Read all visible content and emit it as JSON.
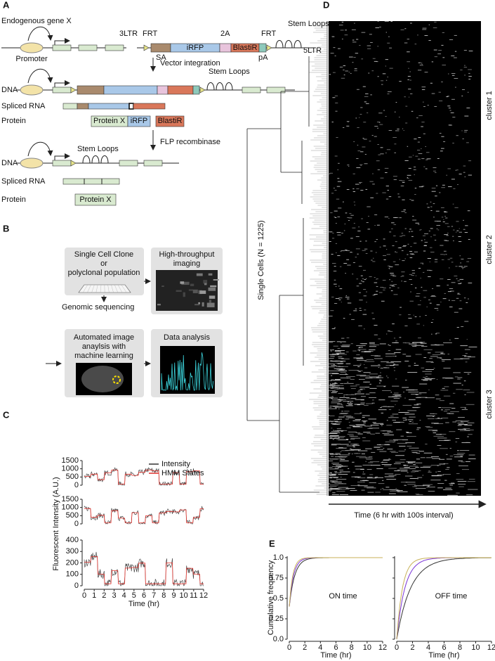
{
  "panel_a": {
    "label": "A",
    "gene": "Endogenous gene X",
    "promoter": "Promoter",
    "ltr3": "3LTR",
    "frt1": "FRT",
    "sa": "SA",
    "irfp": "iRFP",
    "a2": "2A",
    "blastir": "BlastiR",
    "frt2": "FRT",
    "pa": "pA",
    "stem_loops_1": "Stem Loops",
    "ltr5": "5LTR",
    "vector_integration": "Vector integration",
    "dna_1": "DNA",
    "stem_loops_2": "Stem Loops",
    "spliced_rna_1": "Spliced RNA",
    "protein_1": "Protein",
    "protein_x_1": "Protein X",
    "irfp_2": "iRFP",
    "blastir_2": "BlastiR",
    "flp": "FLP recombinase",
    "dna_2": "DNA",
    "stem_loops_3": "Stem Loops",
    "spliced_rna_2": "Spliced RNA",
    "protein_2": "Protein",
    "protein_x_2": "Protein X"
  },
  "panel_b": {
    "label": "B",
    "clone_1": "Single Cell Clone",
    "clone_2": "or",
    "clone_3": "polyclonal population",
    "imaging_1": "High-throughput",
    "imaging_2": "imaging",
    "sequencing": "Genomic sequencing",
    "analysis_1": "Automated image",
    "analysis_2": "anaylsis with",
    "analysis_3": "machine learning",
    "data_analysis": "Data analysis"
  },
  "panel_c": {
    "label": "C",
    "y_label": "Fluorescent Intensity (A.U.)",
    "x_label": "Time (hr)",
    "legend": [
      "Intensity",
      "HMM States"
    ],
    "xlim": [
      0,
      12
    ],
    "xticks": [
      0,
      1,
      2,
      3,
      4,
      5,
      6,
      7,
      8,
      9,
      10,
      11,
      12
    ],
    "subplots": [
      {
        "ylim": [
          0,
          1500
        ],
        "yticks": [
          0,
          500,
          1000,
          1500
        ]
      },
      {
        "ylim": [
          0,
          1500
        ],
        "yticks": [
          0,
          500,
          1000,
          1500
        ]
      },
      {
        "ylim": [
          0,
          400
        ],
        "yticks": [
          0,
          100,
          200,
          300,
          400
        ]
      }
    ]
  },
  "panel_d": {
    "label": "D",
    "y_label": "Single Cells (N = 1225)",
    "x_label": "Time (6 hr with 100s interval)",
    "clusters": [
      "cluster 1",
      "cluster 2",
      "cluster 3"
    ]
  },
  "panel_e": {
    "label": "E",
    "y_label": "Cumulative frequency",
    "x_label": "Time (hr)",
    "titles": [
      "ON time",
      "OFF time"
    ],
    "xlim": [
      0,
      12
    ],
    "ylim": [
      0,
      1
    ],
    "xticks": [
      0,
      2,
      4,
      6,
      8,
      10,
      12
    ],
    "yticks": [
      {
        "value": 0,
        "label": "0.0"
      },
      0.25,
      0.5,
      0.75,
      {
        "value": 1,
        "label": "1.0"
      }
    ]
  }
}
